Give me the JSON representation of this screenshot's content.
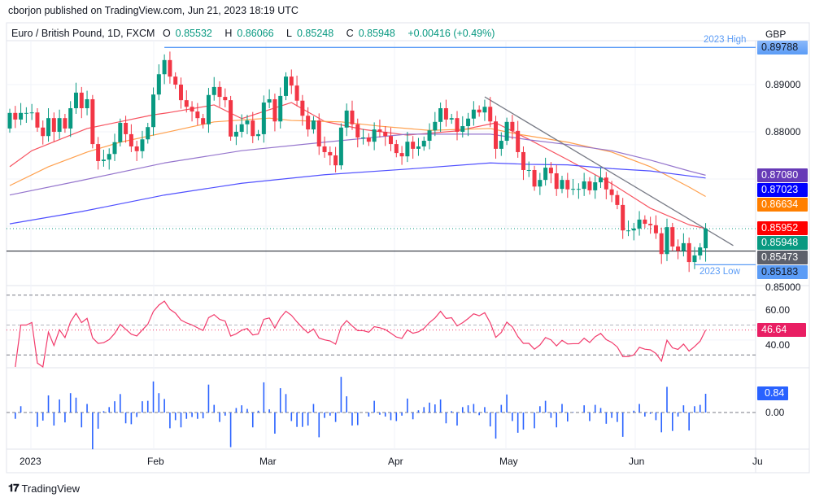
{
  "published": "cborjon published on TradingView.com, Jun 21, 2023 18:19 UTC",
  "legend": {
    "symbol": "Euro / British Pound, 1D, FXCM",
    "o_label": "O",
    "o": "0.85532",
    "h_label": "H",
    "h": "0.86066",
    "l_label": "L",
    "l": "0.85248",
    "c_label": "C",
    "c": "0.85948",
    "change": "+0.00416 (+0.49%)"
  },
  "currency": "GBP",
  "footer": {
    "logo": "TV",
    "brand": "TradingView"
  },
  "colors": {
    "up": "#089981",
    "down": "#f23645",
    "rsi": "#f23b6c",
    "hist": "#2962ff",
    "grid": "#f0f3fa",
    "level_line": "#5b9cf6"
  },
  "chart_data": {
    "type": "candlestick",
    "title": "Euro / British Pound, 1D, FXCM",
    "ylabel": "GBP",
    "ylim": [
      0.8485,
      0.9035
    ],
    "y_ticks": [
      "0.89000",
      "0.88000",
      "0.85000"
    ],
    "y_tick_values": [
      0.89,
      0.88,
      0.85
    ],
    "grid_values": [
      0.89,
      0.88,
      0.87,
      0.86
    ],
    "x_tick_labels": [
      "2023",
      "Feb",
      "Mar",
      "Apr",
      "May",
      "Jun",
      "Ju"
    ],
    "first_open": 0.8807,
    "closes": [
      0.884,
      0.8826,
      0.884,
      0.884,
      0.8841,
      0.8809,
      0.8791,
      0.8829,
      0.88,
      0.8829,
      0.8807,
      0.885,
      0.8883,
      0.885,
      0.8869,
      0.8774,
      0.8738,
      0.8741,
      0.8753,
      0.8778,
      0.8819,
      0.8795,
      0.8769,
      0.8759,
      0.8784,
      0.881,
      0.8879,
      0.8922,
      0.8952,
      0.8917,
      0.89,
      0.8867,
      0.8853,
      0.8843,
      0.8829,
      0.8816,
      0.8878,
      0.8895,
      0.8874,
      0.8867,
      0.879,
      0.88,
      0.8816,
      0.8824,
      0.8791,
      0.8795,
      0.8862,
      0.8869,
      0.8822,
      0.8876,
      0.8917,
      0.8898,
      0.8866,
      0.8834,
      0.8805,
      0.8824,
      0.8769,
      0.8757,
      0.875,
      0.8729,
      0.8809,
      0.8845,
      0.8816,
      0.8788,
      0.8788,
      0.8779,
      0.8805,
      0.88,
      0.8791,
      0.8774,
      0.8755,
      0.8748,
      0.8779,
      0.8764,
      0.8769,
      0.8781,
      0.8803,
      0.8821,
      0.885,
      0.8826,
      0.8829,
      0.88,
      0.8812,
      0.8828,
      0.8847,
      0.8841,
      0.8853,
      0.8822,
      0.8764,
      0.8781,
      0.8821,
      0.8802,
      0.8757,
      0.8719,
      0.8719,
      0.8684,
      0.8698,
      0.8724,
      0.8712,
      0.8679,
      0.8698,
      0.8678,
      0.8679,
      0.8679,
      0.8695,
      0.8676,
      0.8693,
      0.8703,
      0.8678,
      0.8666,
      0.8645,
      0.8591,
      0.8591,
      0.8595,
      0.8614,
      0.8605,
      0.8602,
      0.8585,
      0.8541,
      0.8598,
      0.8557,
      0.8548,
      0.8564,
      0.8524,
      0.8538,
      0.8555,
      0.85948
    ],
    "last_candle": {
      "open": 0.85532,
      "high": 0.86066,
      "low": 0.85248,
      "close": 0.85948
    },
    "moving_averages": [
      {
        "id": "ma-red",
        "color": "#f7525f",
        "last_label": "0.85952",
        "label_bg": "#ff0000",
        "points": [
          [
            0,
            0.8726
          ],
          [
            4,
            0.876
          ],
          [
            14,
            0.8807
          ],
          [
            26,
            0.8836
          ],
          [
            29,
            0.8841
          ],
          [
            37,
            0.8857
          ],
          [
            42,
            0.8828
          ],
          [
            51,
            0.8862
          ],
          [
            57,
            0.8822
          ],
          [
            64,
            0.8805
          ],
          [
            72,
            0.8793
          ],
          [
            81,
            0.8802
          ],
          [
            88,
            0.8819
          ],
          [
            94,
            0.8784
          ],
          [
            101,
            0.8741
          ],
          [
            109,
            0.869
          ],
          [
            116,
            0.8638
          ],
          [
            123,
            0.8603
          ],
          [
            126,
            0.8595
          ]
        ]
      },
      {
        "id": "ma-orange",
        "color": "#ffa04d",
        "last_label": "0.86634",
        "label_bg": "#ff7f00",
        "points": [
          [
            0,
            0.8686
          ],
          [
            7,
            0.8726
          ],
          [
            14,
            0.8757
          ],
          [
            20,
            0.8778
          ],
          [
            28,
            0.8798
          ],
          [
            37,
            0.8821
          ],
          [
            47,
            0.8829
          ],
          [
            51,
            0.8824
          ],
          [
            60,
            0.8821
          ],
          [
            67,
            0.8812
          ],
          [
            76,
            0.8803
          ],
          [
            87,
            0.8807
          ],
          [
            92,
            0.8795
          ],
          [
            101,
            0.8778
          ],
          [
            109,
            0.8757
          ],
          [
            116,
            0.8726
          ],
          [
            123,
            0.8683
          ],
          [
            126,
            0.8663
          ]
        ]
      },
      {
        "id": "ma-purple",
        "color": "#9575cd",
        "last_label": "0.87080",
        "label_bg": "#673ab7",
        "points": [
          [
            0,
            0.8666
          ],
          [
            13,
            0.8697
          ],
          [
            28,
            0.8734
          ],
          [
            42,
            0.876
          ],
          [
            57,
            0.8778
          ],
          [
            72,
            0.8795
          ],
          [
            87,
            0.8795
          ],
          [
            94,
            0.8783
          ],
          [
            101,
            0.8773
          ],
          [
            109,
            0.876
          ],
          [
            116,
            0.874
          ],
          [
            123,
            0.8717
          ],
          [
            126,
            0.8708
          ]
        ]
      },
      {
        "id": "ma-blue",
        "color": "#5050ff",
        "last_label": "0.87023",
        "label_bg": "#0000ff",
        "points": [
          [
            0,
            0.8605
          ],
          [
            13,
            0.8631
          ],
          [
            28,
            0.8666
          ],
          [
            42,
            0.8691
          ],
          [
            57,
            0.8709
          ],
          [
            72,
            0.8721
          ],
          [
            87,
            0.8734
          ],
          [
            94,
            0.8731
          ],
          [
            101,
            0.873
          ],
          [
            109,
            0.8722
          ],
          [
            116,
            0.8717
          ],
          [
            126,
            0.8702
          ]
        ]
      }
    ],
    "trendline": {
      "from": [
        86,
        0.8874
      ],
      "to": [
        131,
        0.8559
      ]
    },
    "levels": [
      {
        "id": "high",
        "value": 0.89788,
        "label": "0.89788",
        "annotation": "2023 High",
        "from_index": 28
      },
      {
        "id": "low",
        "value": 0.85183,
        "label": "0.85183",
        "annotation": "2023 Low",
        "from_index": 124
      }
    ],
    "support_line": {
      "value": 0.85473,
      "label": "0.85473",
      "label_bg": "#5d606b"
    },
    "last_price": {
      "value": 0.85948,
      "label": "0.85948",
      "label_bg": "#089981"
    },
    "rsi": {
      "period": 14,
      "last_label": "46.64",
      "last_value": 46.64,
      "levels": [
        70,
        50,
        30
      ],
      "ticks": [
        "60.00",
        "40.00"
      ],
      "tick_values": [
        60,
        40
      ],
      "ylim": [
        21.5,
        75.8
      ]
    },
    "momentum": {
      "last_label": "0.84",
      "last_value": 0.84,
      "ticks": [
        "0.00"
      ],
      "ylim": [
        -1.65,
        1.6
      ]
    }
  }
}
